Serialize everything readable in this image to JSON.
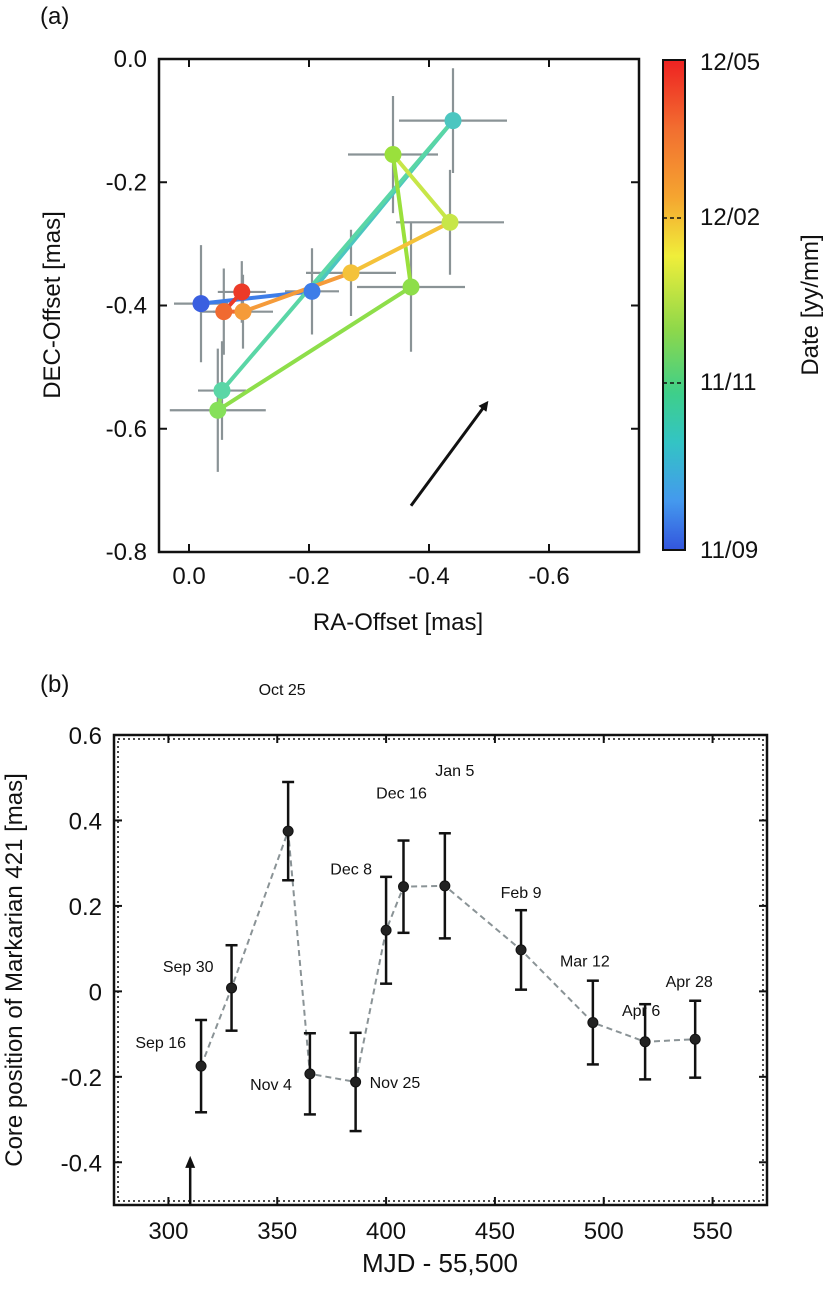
{
  "chart_data": [
    {
      "panel_label": "(a)",
      "type": "scatter",
      "xlabel": "RA-Offset [mas]",
      "ylabel": "DEC-Offset [mas]",
      "xlim": [
        0.05,
        -0.75
      ],
      "ylim": [
        -0.8,
        0.0
      ],
      "x_ticks": [
        0.0,
        -0.2,
        -0.4,
        -0.6
      ],
      "x_tick_labels": [
        "0.0",
        "-0.2",
        "-0.4",
        "-0.6"
      ],
      "y_ticks": [
        0.0,
        -0.2,
        -0.4,
        -0.6,
        -0.8
      ],
      "y_tick_labels": [
        "0.0",
        "-0.2",
        "-0.4",
        "-0.6",
        "-0.8"
      ],
      "colorbar": {
        "label": "Date [yy/mm]",
        "tick_labels": [
          "12/05",
          "12/02",
          "11/11",
          "11/09"
        ],
        "colors": [
          "#ee2222",
          "#f5a530",
          "#f0ee3a",
          "#8ed84a",
          "#3ecf8a",
          "#33c4c4",
          "#4499ee",
          "#3355dd"
        ]
      },
      "points": [
        {
          "x": -0.02,
          "y": -0.397,
          "xerr": 0.045,
          "yerr": 0.095,
          "color": "#3a5fe0"
        },
        {
          "x": -0.205,
          "y": -0.377,
          "xerr": 0.045,
          "yerr": 0.07,
          "color": "#3d7de8"
        },
        {
          "x": -0.44,
          "y": -0.1,
          "xerr": 0.09,
          "yerr": 0.085,
          "color": "#4cc6c0"
        },
        {
          "x": -0.055,
          "y": -0.538,
          "xerr": 0.04,
          "yerr": 0.08,
          "color": "#5ad6a6"
        },
        {
          "x": -0.048,
          "y": -0.57,
          "xerr": 0.08,
          "yerr": 0.1,
          "color": "#86e05a"
        },
        {
          "x": -0.37,
          "y": -0.37,
          "xerr": 0.09,
          "yerr": 0.105,
          "color": "#8ede4a"
        },
        {
          "x": -0.34,
          "y": -0.155,
          "xerr": 0.075,
          "yerr": 0.095,
          "color": "#9ae03c"
        },
        {
          "x": -0.435,
          "y": -0.265,
          "xerr": 0.09,
          "yerr": 0.085,
          "color": "#c7e648"
        },
        {
          "x": -0.27,
          "y": -0.347,
          "xerr": 0.075,
          "yerr": 0.07,
          "color": "#f4c23a"
        },
        {
          "x": -0.09,
          "y": -0.41,
          "xerr": 0.05,
          "yerr": 0.06,
          "color": "#f59b3a"
        },
        {
          "x": -0.058,
          "y": -0.41,
          "xerr": 0.04,
          "yerr": 0.07,
          "color": "#f06a30"
        },
        {
          "x": -0.088,
          "y": -0.378,
          "xerr": 0.04,
          "yerr": 0.05,
          "color": "#ec3a28"
        }
      ],
      "arrow": {
        "from": [
          -0.37,
          -0.725
        ],
        "to": [
          -0.495,
          -0.56
        ]
      }
    },
    {
      "panel_label": "(b)",
      "type": "line",
      "xlabel": "MJD - 55,500",
      "ylabel": "Core position of Markarian 421 [mas]",
      "xlim": [
        275,
        575
      ],
      "ylim": [
        -0.5,
        0.6
      ],
      "x_ticks": [
        300,
        350,
        400,
        450,
        500,
        550
      ],
      "x_tick_labels": [
        "300",
        "350",
        "400",
        "450",
        "500",
        "550"
      ],
      "y_ticks": [
        0.6,
        0.4,
        0.2,
        0,
        -0.2,
        -0.4
      ],
      "y_tick_labels": [
        "0.6",
        "0.4",
        "0.2",
        "0",
        "-0.2",
        "-0.4"
      ],
      "points": [
        {
          "x": 315,
          "y": -0.175,
          "yerr": 0.108,
          "label": "Sep 16"
        },
        {
          "x": 329,
          "y": 0.008,
          "yerr": 0.1,
          "label": "Sep 30"
        },
        {
          "x": 355,
          "y": 0.375,
          "yerr": 0.115,
          "label": "Oct 25"
        },
        {
          "x": 365,
          "y": -0.193,
          "yerr": 0.095,
          "label": "Nov 4"
        },
        {
          "x": 386,
          "y": -0.212,
          "yerr": 0.115,
          "label": "Nov 25"
        },
        {
          "x": 400,
          "y": 0.143,
          "yerr": 0.125,
          "label": "Dec 8"
        },
        {
          "x": 408,
          "y": 0.245,
          "yerr": 0.108,
          "label": "Dec 16"
        },
        {
          "x": 427,
          "y": 0.247,
          "yerr": 0.123,
          "label": "Jan 5"
        },
        {
          "x": 462,
          "y": 0.097,
          "yerr": 0.093,
          "label": "Feb 9"
        },
        {
          "x": 495,
          "y": -0.073,
          "yerr": 0.098,
          "label": "Mar 12"
        },
        {
          "x": 519,
          "y": -0.118,
          "yerr": 0.088,
          "label": "Apr 6"
        },
        {
          "x": 542,
          "y": -0.112,
          "yerr": 0.09,
          "label": "Apr 28"
        }
      ],
      "arrow": {
        "x": 310,
        "from_y": -0.5,
        "to_y": -0.385
      }
    }
  ]
}
